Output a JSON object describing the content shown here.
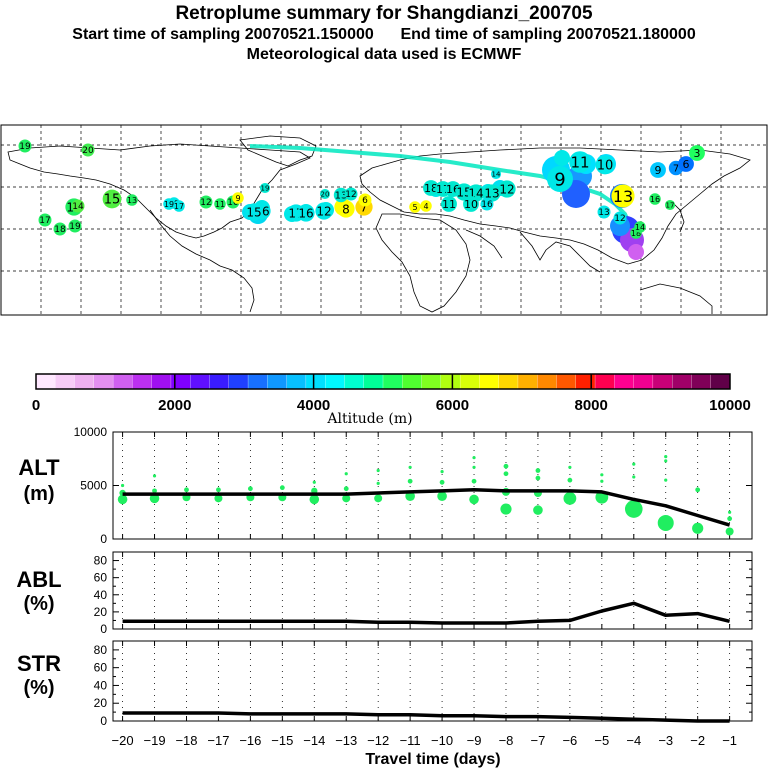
{
  "title": {
    "line1": "Retroplume summary for Shangdianzi_200705",
    "start": "Start time of sampling 20070521.150000",
    "end": "End time of sampling 20070521.180000",
    "met": "Meteorological data used is ECMWF"
  },
  "colorbar": {
    "label": "Altitude (m)",
    "ticks": [
      "0",
      "2000",
      "4000",
      "6000",
      "8000",
      "10000"
    ],
    "colors": [
      "#ffe8ff",
      "#f7ccf7",
      "#eeb0f0",
      "#e38ff0",
      "#d060f0",
      "#bc30f0",
      "#a010f0",
      "#8000ff",
      "#6010ff",
      "#3a1cff",
      "#2040ff",
      "#1870ff",
      "#1098ff",
      "#08c0ff",
      "#00e0ff",
      "#00f8ff",
      "#00ffd0",
      "#00ff98",
      "#20ff60",
      "#50ff30",
      "#80ff20",
      "#b0ff10",
      "#d8ff08",
      "#ffff00",
      "#ffd800",
      "#ffb000",
      "#ff8800",
      "#ff5800",
      "#ff2000",
      "#ff0050",
      "#ff0090",
      "#f00090",
      "#c80078",
      "#a00068",
      "#800058",
      "#600048"
    ]
  },
  "map": {
    "labels": [
      {
        "t": "19",
        "c": "#20ee60"
      },
      {
        "t": "20",
        "c": "#40ee50"
      },
      {
        "t": "19",
        "c": "#20ee60"
      },
      {
        "t": "18",
        "c": "#20ee60"
      },
      {
        "t": "17",
        "c": "#20ee60"
      },
      {
        "t": "16",
        "c": "#20ee60"
      },
      {
        "t": "15",
        "c": "#50ee40"
      },
      {
        "t": "14",
        "c": "#50ee40"
      },
      {
        "t": "13",
        "c": "#20ee60"
      },
      {
        "t": "12",
        "c": "#20ee60"
      },
      {
        "t": "11",
        "c": "#20ee60"
      },
      {
        "t": "10",
        "c": "#20ee60"
      },
      {
        "t": "9",
        "c": "#ffff00"
      },
      {
        "t": "8",
        "c": "#ffff00"
      },
      {
        "t": "7",
        "c": "#ffd800"
      },
      {
        "t": "6",
        "c": "#ffff00"
      },
      {
        "t": "5",
        "c": "#ffff00"
      },
      {
        "t": "4",
        "c": "#ffff00"
      },
      {
        "t": "20",
        "c": "#00e8d0"
      },
      {
        "t": "19",
        "c": "#00e8d0"
      },
      {
        "t": "18",
        "c": "#00e8d0"
      },
      {
        "t": "17",
        "c": "#00e8d0"
      },
      {
        "t": "16",
        "c": "#00e8d0"
      },
      {
        "t": "15",
        "c": "#00e8d0"
      },
      {
        "t": "14",
        "c": "#00e8d0"
      },
      {
        "t": "13",
        "c": "#00e8d0"
      },
      {
        "t": "12",
        "c": "#00e8d0"
      },
      {
        "t": "11",
        "c": "#00e8d0"
      },
      {
        "t": "10",
        "c": "#00e8d0"
      },
      {
        "t": "16",
        "c": "#00e8e8"
      },
      {
        "t": "17",
        "c": "#00e8e8"
      },
      {
        "t": "16",
        "c": "#00e8e8"
      },
      {
        "t": "12",
        "c": "#00e8e8"
      },
      {
        "t": "8",
        "c": "#ffff00"
      },
      {
        "t": "13",
        "c": "#00e8d0"
      },
      {
        "t": "12",
        "c": "#00e8d0"
      },
      {
        "t": "20",
        "c": "#00e8e8"
      },
      {
        "t": "19",
        "c": "#00e8e8"
      },
      {
        "t": "17",
        "c": "#00e8e8"
      },
      {
        "t": "16",
        "c": "#00e8e8"
      },
      {
        "t": "15",
        "c": "#00e8e8"
      },
      {
        "t": "14",
        "c": "#00e8e8"
      },
      {
        "t": "11",
        "c": "#00e8e8"
      },
      {
        "t": "10",
        "c": "#00e8e8"
      },
      {
        "t": "9",
        "c": "#00e8e8"
      },
      {
        "t": "13",
        "c": "#ffff00"
      },
      {
        "t": "12",
        "c": "#00e8e8"
      },
      {
        "t": "13",
        "c": "#00e8e8"
      },
      {
        "t": "9",
        "c": "#00c8ff"
      },
      {
        "t": "7",
        "c": "#0090ff"
      },
      {
        "t": "6",
        "c": "#0070ff"
      },
      {
        "t": "3",
        "c": "#20ff60"
      },
      {
        "t": "16",
        "c": "#20ee60"
      },
      {
        "t": "17",
        "c": "#20ee60"
      },
      {
        "t": "18",
        "c": "#20ee60"
      },
      {
        "t": "14",
        "c": "#20ee60"
      },
      {
        "t": "20",
        "c": "#ffff00"
      },
      {
        "t": "19",
        "c": "#ffff00"
      },
      {
        "t": "2",
        "c": "#c060ff"
      },
      {
        "t": "1",
        "c": "#c030f0"
      }
    ]
  },
  "chart_data": [
    {
      "type": "scatter+line",
      "panel": "ALT",
      "ylabel": "ALT (m)",
      "ylim": [
        0,
        10000
      ],
      "yticks": [
        "0",
        "5000",
        "10000"
      ],
      "x": [
        -20,
        -19,
        -18,
        -17,
        -16,
        -15,
        -14,
        -13,
        -12,
        -11,
        -10,
        -9,
        -8,
        -7,
        -6,
        -5,
        -4,
        -3,
        -2,
        -1
      ],
      "line_values": [
        4200,
        4200,
        4200,
        4200,
        4200,
        4200,
        4200,
        4200,
        4300,
        4400,
        4500,
        4600,
        4500,
        4500,
        4500,
        4400,
        3700,
        3100,
        2200,
        1300
      ],
      "scatter_points": [
        {
          "x": -20,
          "y": 3700,
          "s": 6
        },
        {
          "x": -20,
          "y": 4300,
          "s": 4
        },
        {
          "x": -20,
          "y": 5000,
          "s": 2
        },
        {
          "x": -19,
          "y": 3800,
          "s": 6
        },
        {
          "x": -19,
          "y": 4500,
          "s": 3
        },
        {
          "x": -19,
          "y": 5900,
          "s": 2
        },
        {
          "x": -18,
          "y": 3900,
          "s": 5
        },
        {
          "x": -18,
          "y": 4600,
          "s": 3
        },
        {
          "x": -17,
          "y": 3800,
          "s": 5
        },
        {
          "x": -17,
          "y": 4600,
          "s": 3
        },
        {
          "x": -16,
          "y": 3900,
          "s": 5
        },
        {
          "x": -16,
          "y": 4700,
          "s": 3
        },
        {
          "x": -15,
          "y": 3900,
          "s": 5
        },
        {
          "x": -15,
          "y": 4800,
          "s": 3
        },
        {
          "x": -14,
          "y": 3700,
          "s": 6
        },
        {
          "x": -14,
          "y": 4500,
          "s": 4
        },
        {
          "x": -14,
          "y": 5300,
          "s": 2
        },
        {
          "x": -13,
          "y": 3800,
          "s": 5
        },
        {
          "x": -13,
          "y": 4700,
          "s": 3
        },
        {
          "x": -13,
          "y": 6100,
          "s": 2
        },
        {
          "x": -12,
          "y": 3800,
          "s": 5
        },
        {
          "x": -12,
          "y": 5200,
          "s": 2
        },
        {
          "x": -12,
          "y": 6400,
          "s": 2
        },
        {
          "x": -11,
          "y": 4000,
          "s": 6
        },
        {
          "x": -11,
          "y": 5400,
          "s": 3
        },
        {
          "x": -11,
          "y": 6700,
          "s": 2
        },
        {
          "x": -10,
          "y": 4000,
          "s": 6
        },
        {
          "x": -10,
          "y": 5300,
          "s": 3
        },
        {
          "x": -10,
          "y": 6300,
          "s": 2
        },
        {
          "x": -9,
          "y": 3700,
          "s": 6
        },
        {
          "x": -9,
          "y": 5400,
          "s": 3
        },
        {
          "x": -9,
          "y": 6700,
          "s": 2
        },
        {
          "x": -9,
          "y": 7600,
          "s": 2
        },
        {
          "x": -8,
          "y": 2800,
          "s": 7
        },
        {
          "x": -8,
          "y": 4400,
          "s": 5
        },
        {
          "x": -8,
          "y": 6100,
          "s": 3
        },
        {
          "x": -8,
          "y": 6800,
          "s": 3
        },
        {
          "x": -7,
          "y": 2700,
          "s": 6
        },
        {
          "x": -7,
          "y": 4300,
          "s": 5
        },
        {
          "x": -7,
          "y": 5700,
          "s": 3
        },
        {
          "x": -7,
          "y": 6400,
          "s": 3
        },
        {
          "x": -6,
          "y": 3800,
          "s": 8
        },
        {
          "x": -6,
          "y": 5500,
          "s": 3
        },
        {
          "x": -6,
          "y": 6700,
          "s": 2
        },
        {
          "x": -5,
          "y": 3900,
          "s": 8
        },
        {
          "x": -5,
          "y": 5400,
          "s": 2
        },
        {
          "x": -5,
          "y": 6000,
          "s": 2
        },
        {
          "x": -4,
          "y": 2800,
          "s": 11
        },
        {
          "x": -4,
          "y": 5800,
          "s": 2
        },
        {
          "x": -4,
          "y": 7000,
          "s": 2
        },
        {
          "x": -3,
          "y": 1500,
          "s": 10
        },
        {
          "x": -3,
          "y": 5500,
          "s": 2
        },
        {
          "x": -3,
          "y": 7300,
          "s": 2
        },
        {
          "x": -3,
          "y": 7700,
          "s": 2
        },
        {
          "x": -2,
          "y": 1000,
          "s": 7
        },
        {
          "x": -2,
          "y": 4600,
          "s": 3
        },
        {
          "x": -1,
          "y": 700,
          "s": 5
        },
        {
          "x": -1,
          "y": 1900,
          "s": 3
        },
        {
          "x": -1,
          "y": 2500,
          "s": 2
        }
      ]
    },
    {
      "type": "line",
      "panel": "ABL",
      "ylabel": "ABL (%)",
      "ylim": [
        0,
        90
      ],
      "yticks": [
        "0",
        "20",
        "40",
        "60",
        "80"
      ],
      "x": [
        -20,
        -19,
        -18,
        -17,
        -16,
        -15,
        -14,
        -13,
        -12,
        -11,
        -10,
        -9,
        -8,
        -7,
        -6,
        -5,
        -4,
        -3,
        -2,
        -1
      ],
      "values": [
        9,
        9,
        9,
        9,
        9,
        9,
        9,
        9,
        8,
        8,
        7,
        7,
        7,
        9,
        10,
        21,
        30,
        16,
        18,
        9
      ]
    },
    {
      "type": "line",
      "panel": "STR",
      "ylabel": "STR (%)",
      "ylim": [
        0,
        90
      ],
      "yticks": [
        "0",
        "20",
        "40",
        "60",
        "80"
      ],
      "x": [
        -20,
        -19,
        -18,
        -17,
        -16,
        -15,
        -14,
        -13,
        -12,
        -11,
        -10,
        -9,
        -8,
        -7,
        -6,
        -5,
        -4,
        -3,
        -2,
        -1
      ],
      "values": [
        9,
        9,
        9,
        9,
        8,
        8,
        8,
        8,
        7,
        7,
        6,
        6,
        5,
        5,
        4,
        3,
        2,
        1,
        0,
        0
      ]
    }
  ],
  "xaxis": {
    "label": "Travel time (days)",
    "ticks": [
      "-20",
      "-19",
      "-18",
      "-17",
      "-16",
      "-15",
      "-14",
      "-13",
      "-12",
      "-11",
      "-10",
      "-9",
      "-8",
      "-7",
      "-6",
      "-5",
      "-4",
      "-3",
      "-2",
      "-1"
    ]
  }
}
